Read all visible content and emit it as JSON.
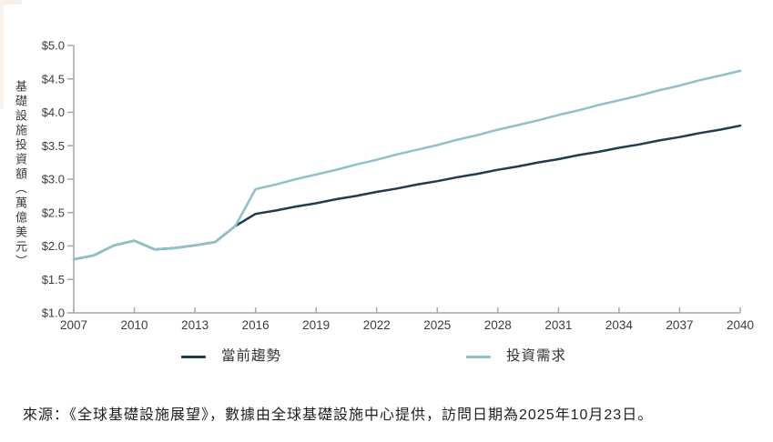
{
  "colors": {
    "current_trend": "#1d3e50",
    "investment_need": "#8cc2c9",
    "axis": "#a8a8a8",
    "tick_text": "#3d3d3d"
  },
  "y_axis_title": "基礎設施投資額（萬億美元）",
  "legend": {
    "current_trend_label": "當前趨勢",
    "investment_need_label": "投資需求"
  },
  "source_note": "來源：《全球基礎設施展望》，數據由全球基礎設施中心提供，訪問日期為2025年10月23日。",
  "chart_data": {
    "type": "line",
    "title": "",
    "xlabel": "",
    "ylabel": "基礎設施投資額（萬億美元）",
    "grid": false,
    "legend_position": "bottom",
    "ylim": [
      1.0,
      5.0
    ],
    "xlim": [
      2007,
      2040
    ],
    "x_ticks": [
      2007,
      2010,
      2013,
      2016,
      2019,
      2022,
      2025,
      2028,
      2031,
      2034,
      2037,
      2040
    ],
    "x_tick_labels": [
      "2007",
      "2010",
      "2013",
      "2016",
      "2019",
      "2022",
      "2025",
      "2028",
      "2031",
      "2034",
      "2037",
      "2040"
    ],
    "y_ticks": [
      5.0,
      4.5,
      4.0,
      3.5,
      3.0,
      2.5,
      2.0,
      1.5,
      1.0
    ],
    "y_tick_labels": [
      "$5.0",
      "$4.5",
      "$4.0",
      "$3.5",
      "$3.0",
      "$2.5",
      "$2.0",
      "$1.5",
      "$1.0"
    ],
    "years": [
      2007,
      2008,
      2009,
      2010,
      2011,
      2012,
      2013,
      2014,
      2015,
      2016,
      2017,
      2018,
      2019,
      2020,
      2021,
      2022,
      2023,
      2024,
      2025,
      2026,
      2027,
      2028,
      2029,
      2030,
      2031,
      2032,
      2033,
      2034,
      2035,
      2036,
      2037,
      2038,
      2039,
      2040
    ],
    "series": [
      {
        "name": "當前趨勢",
        "color": "#1d3e50",
        "values": [
          1.8,
          1.86,
          2.01,
          2.08,
          1.95,
          1.97,
          2.01,
          2.06,
          2.3,
          2.48,
          2.53,
          2.59,
          2.64,
          2.7,
          2.75,
          2.81,
          2.86,
          2.92,
          2.97,
          3.03,
          3.08,
          3.14,
          3.19,
          3.25,
          3.3,
          3.36,
          3.41,
          3.47,
          3.52,
          3.58,
          3.63,
          3.69,
          3.74,
          3.8
        ]
      },
      {
        "name": "投資需求",
        "color": "#8cc2c9",
        "values": [
          1.8,
          1.86,
          2.01,
          2.08,
          1.95,
          1.97,
          2.01,
          2.06,
          2.3,
          2.85,
          2.92,
          3.0,
          3.07,
          3.14,
          3.22,
          3.29,
          3.37,
          3.44,
          3.51,
          3.59,
          3.66,
          3.74,
          3.81,
          3.88,
          3.96,
          4.03,
          4.11,
          4.18,
          4.25,
          4.33,
          4.4,
          4.48,
          4.55,
          4.62
        ]
      }
    ]
  }
}
